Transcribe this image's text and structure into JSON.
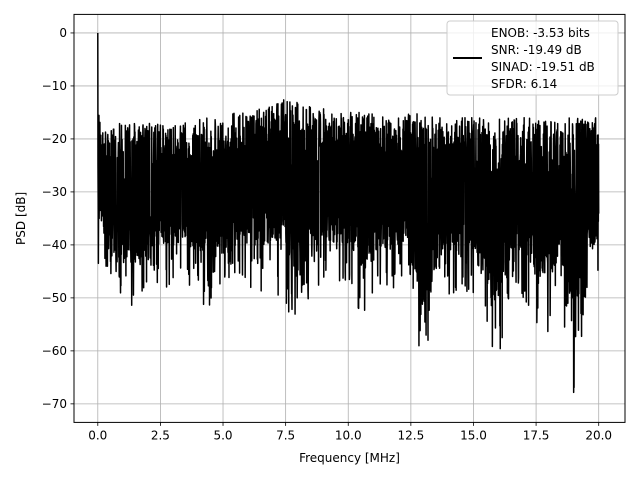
{
  "chart_data": {
    "type": "line",
    "title": "",
    "xlabel": "Frequency [MHz]",
    "ylabel": "PSD [dB]",
    "xlim": [
      -0.95,
      21.05
    ],
    "ylim": [
      -73.5,
      3.5
    ],
    "xticks": [
      0.0,
      2.5,
      5.0,
      7.5,
      10.0,
      12.5,
      15.0,
      17.5,
      20.0
    ],
    "xtick_labels": [
      "0.0",
      "2.5",
      "5.0",
      "7.5",
      "10.0",
      "12.5",
      "15.0",
      "17.5",
      "20.0"
    ],
    "yticks": [
      0,
      -10,
      -20,
      -30,
      -40,
      -50,
      -60,
      -70
    ],
    "ytick_labels": [
      "0",
      "−10",
      "−20",
      "−30",
      "−40",
      "−50",
      "−60",
      "−70"
    ],
    "grid": true,
    "legend_position": "top-right",
    "legend_lines": [
      "ENOB: -3.53 bits",
      "SNR: -19.49 dB",
      "SINAD: -19.51 dB",
      "SFDR: 6.14"
    ],
    "series_color": "#000000",
    "series": [
      {
        "x": [
          0.0,
          0.02,
          0.05,
          0.1,
          0.2,
          0.35,
          0.5,
          0.8,
          1.2,
          1.6,
          2.0,
          2.5,
          3.0,
          3.5,
          4.0,
          4.5,
          5.0,
          5.5,
          6.0,
          6.5,
          7.0,
          7.5,
          8.0,
          8.5,
          9.0,
          9.5,
          10.0,
          10.5,
          11.0,
          11.5,
          12.0,
          12.5,
          13.0,
          13.5,
          14.0,
          14.5,
          15.0,
          15.5,
          16.0,
          16.5,
          17.0,
          17.5,
          18.0,
          18.5,
          19.0,
          19.5,
          20.0
        ],
        "y_upper": [
          0,
          -8,
          -16,
          -17,
          -18,
          -19,
          -18,
          -17,
          -17,
          -17,
          -17,
          -17,
          -17,
          -17,
          -16,
          -16,
          -16,
          -15,
          -15,
          -14,
          -13,
          -12,
          -13,
          -14,
          -14,
          -15,
          -15,
          -15,
          -15,
          -16,
          -16,
          -15,
          -15,
          -16,
          -16,
          -16,
          -16,
          -16,
          -16,
          -16,
          -16,
          -16,
          -16,
          -16,
          -16,
          -16,
          -16
        ],
        "y_lower": [
          -35,
          -45,
          -42,
          -40,
          -42,
          -55,
          -48,
          -53,
          -52,
          -53,
          -49,
          -48,
          -48,
          -47,
          -50,
          -53,
          -48,
          -47,
          -48,
          -49,
          -48,
          -52,
          -57,
          -50,
          -48,
          -48,
          -48,
          -54,
          -50,
          -50,
          -47,
          -50,
          -67,
          -53,
          -50,
          -48,
          -50,
          -57,
          -64,
          -50,
          -50,
          -56,
          -57,
          -50,
          -70,
          -50,
          -48
        ]
      }
    ]
  }
}
